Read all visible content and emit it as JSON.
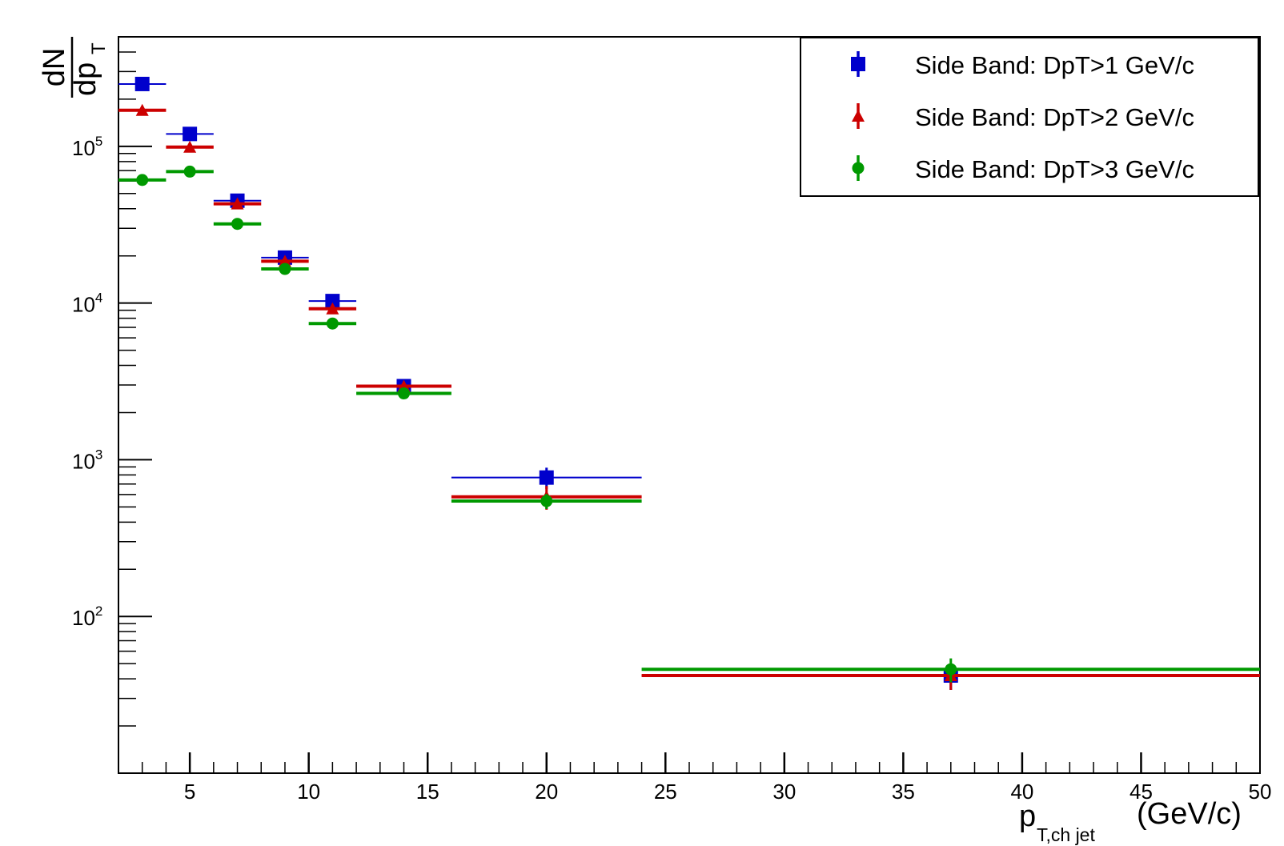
{
  "chart_data": {
    "type": "scatter",
    "y_scale": "log",
    "xlim": [
      2,
      50
    ],
    "ylim": [
      10,
      500000
    ],
    "grid": false,
    "legend_position": "top-right",
    "x_ticks": [
      5,
      10,
      15,
      20,
      25,
      30,
      35,
      40,
      45,
      50
    ],
    "y_ticks": [
      {
        "value": 100,
        "base": "10",
        "exp": "2"
      },
      {
        "value": 1000,
        "base": "10",
        "exp": "3"
      },
      {
        "value": 10000,
        "base": "10",
        "exp": "4"
      },
      {
        "value": 100000,
        "base": "10",
        "exp": "5"
      }
    ],
    "xlabel": {
      "main": "p",
      "sub": "T,ch jet",
      "unit": "(GeV/c)"
    },
    "ylabel": {
      "num": "dN",
      "den_main": "dp",
      "den_sub": "T"
    },
    "series": [
      {
        "name": "Side Band: DpT>1 GeV/c",
        "color": "#0000cc",
        "marker": "square",
        "points": [
          {
            "x": 3,
            "xlo": 2,
            "xhi": 4,
            "y": 250000,
            "yerr": 7000
          },
          {
            "x": 5,
            "xlo": 4,
            "xhi": 6,
            "y": 120000,
            "yerr": 5000
          },
          {
            "x": 7,
            "xlo": 6,
            "xhi": 8,
            "y": 45000,
            "yerr": 2000
          },
          {
            "x": 9,
            "xlo": 8,
            "xhi": 10,
            "y": 19500,
            "yerr": 800
          },
          {
            "x": 11,
            "xlo": 10,
            "xhi": 12,
            "y": 10300,
            "yerr": 500
          },
          {
            "x": 14,
            "xlo": 12,
            "xhi": 16,
            "y": 2950,
            "yerr": 200
          },
          {
            "x": 20,
            "xlo": 16,
            "xhi": 24,
            "y": 770,
            "yerr": 120
          },
          {
            "x": 37,
            "xlo": 24,
            "xhi": 50,
            "y": 42,
            "yerr": 8
          }
        ]
      },
      {
        "name": "Side Band: DpT>2 GeV/c",
        "color": "#cc0000",
        "marker": "triangle",
        "points": [
          {
            "x": 3,
            "xlo": 2,
            "xhi": 4,
            "y": 170000,
            "yerr": 6000
          },
          {
            "x": 5,
            "xlo": 4,
            "xhi": 6,
            "y": 99000,
            "yerr": 4000
          },
          {
            "x": 7,
            "xlo": 6,
            "xhi": 8,
            "y": 43000,
            "yerr": 2000
          },
          {
            "x": 9,
            "xlo": 8,
            "xhi": 10,
            "y": 18500,
            "yerr": 800
          },
          {
            "x": 11,
            "xlo": 10,
            "xhi": 12,
            "y": 9200,
            "yerr": 500
          },
          {
            "x": 14,
            "xlo": 12,
            "xhi": 16,
            "y": 2950,
            "yerr": 200
          },
          {
            "x": 20,
            "xlo": 16,
            "xhi": 24,
            "y": 580,
            "yerr": 100
          },
          {
            "x": 37,
            "xlo": 24,
            "xhi": 50,
            "y": 42,
            "yerr": 8
          }
        ]
      },
      {
        "name": "Side Band: DpT>3 GeV/c",
        "color": "#009900",
        "marker": "circle",
        "points": [
          {
            "x": 3,
            "xlo": 2,
            "xhi": 4,
            "y": 61000,
            "yerr": 3000
          },
          {
            "x": 5,
            "xlo": 4,
            "xhi": 6,
            "y": 69000,
            "yerr": 3000
          },
          {
            "x": 7,
            "xlo": 6,
            "xhi": 8,
            "y": 32000,
            "yerr": 1500
          },
          {
            "x": 9,
            "xlo": 8,
            "xhi": 10,
            "y": 16500,
            "yerr": 700
          },
          {
            "x": 11,
            "xlo": 10,
            "xhi": 12,
            "y": 7400,
            "yerr": 400
          },
          {
            "x": 14,
            "xlo": 12,
            "xhi": 16,
            "y": 2650,
            "yerr": 150
          },
          {
            "x": 20,
            "xlo": 16,
            "xhi": 24,
            "y": 545,
            "yerr": 60
          },
          {
            "x": 37,
            "xlo": 24,
            "xhi": 50,
            "y": 46,
            "yerr": 8
          }
        ]
      }
    ]
  }
}
